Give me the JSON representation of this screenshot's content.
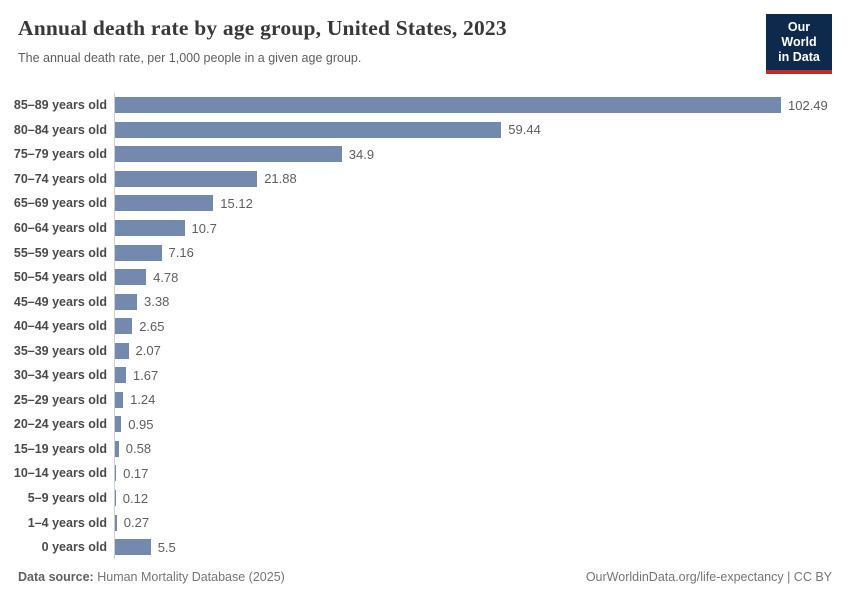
{
  "header": {
    "title": "Annual death rate by age group, United States, 2023",
    "subtitle": "The annual death rate, per 1,000 people in a given age group."
  },
  "logo": {
    "line1": "Our World",
    "line2": "in Data",
    "bg_color": "#0d2a4d",
    "accent_color": "#c32a28"
  },
  "chart_data": {
    "type": "bar",
    "orientation": "horizontal",
    "title": "Annual death rate by age group, United States, 2023",
    "xlabel": "",
    "ylabel": "",
    "xlim": [
      0,
      102.49
    ],
    "grid": false,
    "legend": "none",
    "bar_color": "#7389ae",
    "value_label_position": "end-of-bar",
    "categories": [
      "85–89 years old",
      "80–84 years old",
      "75–79 years old",
      "70–74 years old",
      "65–69 years old",
      "60–64 years old",
      "55–59 years old",
      "50–54 years old",
      "45–49 years old",
      "40–44 years old",
      "35–39 years old",
      "30–34 years old",
      "25–29 years old",
      "20–24 years old",
      "15–19 years old",
      "10–14 years old",
      "5–9 years old",
      "1–4 years old",
      "0 years old"
    ],
    "values": [
      102.49,
      59.44,
      34.9,
      21.88,
      15.12,
      10.7,
      7.16,
      4.78,
      3.38,
      2.65,
      2.07,
      1.67,
      1.24,
      0.95,
      0.58,
      0.17,
      0.12,
      0.27,
      5.5
    ],
    "value_labels": [
      "102.49",
      "59.44",
      "34.9",
      "21.88",
      "15.12",
      "10.7",
      "7.16",
      "4.78",
      "3.38",
      "2.65",
      "2.07",
      "1.67",
      "1.24",
      "0.95",
      "0.58",
      "0.17",
      "0.12",
      "0.27",
      "5.5"
    ]
  },
  "footer": {
    "source_label": "Data source:",
    "source_value": "Human Mortality Database (2025)",
    "credit": "OurWorldinData.org/life-expectancy | CC BY"
  }
}
